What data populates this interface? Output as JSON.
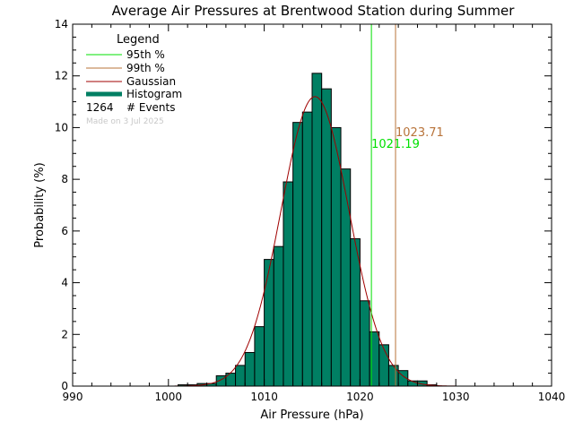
{
  "chart_data": {
    "type": "bar",
    "title": "Average Air Pressures at Brentwood Station during Summer",
    "xlabel": "Air Pressure (hPa)",
    "ylabel": "Probability (%)",
    "xlim": [
      990,
      1040
    ],
    "ylim": [
      0,
      14
    ],
    "xticks": [
      "990",
      "1000",
      "1010",
      "1020",
      "1030",
      "1040"
    ],
    "yticks": [
      "0",
      "2",
      "4",
      "6",
      "8",
      "10",
      "12",
      "14"
    ],
    "bin_width": 1,
    "bins": [
      {
        "x0": 1001,
        "value": 0.05
      },
      {
        "x0": 1002,
        "value": 0.05
      },
      {
        "x0": 1003,
        "value": 0.1
      },
      {
        "x0": 1004,
        "value": 0.1
      },
      {
        "x0": 1005,
        "value": 0.4
      },
      {
        "x0": 1006,
        "value": 0.5
      },
      {
        "x0": 1007,
        "value": 0.8
      },
      {
        "x0": 1008,
        "value": 1.3
      },
      {
        "x0": 1009,
        "value": 2.3
      },
      {
        "x0": 1010,
        "value": 4.9
      },
      {
        "x0": 1011,
        "value": 5.4
      },
      {
        "x0": 1012,
        "value": 7.9
      },
      {
        "x0": 1013,
        "value": 10.2
      },
      {
        "x0": 1014,
        "value": 10.6
      },
      {
        "x0": 1015,
        "value": 12.1
      },
      {
        "x0": 1016,
        "value": 11.5
      },
      {
        "x0": 1017,
        "value": 10.0
      },
      {
        "x0": 1018,
        "value": 8.4
      },
      {
        "x0": 1019,
        "value": 5.7
      },
      {
        "x0": 1020,
        "value": 3.3
      },
      {
        "x0": 1021,
        "value": 2.1
      },
      {
        "x0": 1022,
        "value": 1.6
      },
      {
        "x0": 1023,
        "value": 0.8
      },
      {
        "x0": 1024,
        "value": 0.6
      },
      {
        "x0": 1025,
        "value": 0.2
      },
      {
        "x0": 1026,
        "value": 0.2
      },
      {
        "x0": 1027,
        "value": 0.05
      }
    ],
    "gaussian": {
      "mean": 1015.3,
      "sigma": 3.55,
      "peak": 11.2
    },
    "percentile_lines": [
      {
        "name": "95th %",
        "value": 1021.19,
        "label": "1021.19",
        "color": "#00e000"
      },
      {
        "name": "99th %",
        "value": 1023.71,
        "label": "1023.71",
        "color": "#b8733a"
      }
    ],
    "legend": {
      "title": "Legend",
      "position": "top-left",
      "items": [
        {
          "label": "95th %",
          "color": "#00e000",
          "style": "line"
        },
        {
          "label": "99th %",
          "color": "#b8733a",
          "style": "line"
        },
        {
          "label": "Gaussian",
          "color": "#a00000",
          "style": "line"
        },
        {
          "label": "Histogram",
          "color": "#007f63",
          "style": "thick"
        }
      ],
      "events_count": "1264",
      "events_label": "# Events",
      "note": "Made on 3 Jul 2025"
    },
    "colors": {
      "histogram_fill": "#007f63",
      "histogram_edge": "#000000",
      "gaussian": "#a00000"
    },
    "grid": false
  }
}
